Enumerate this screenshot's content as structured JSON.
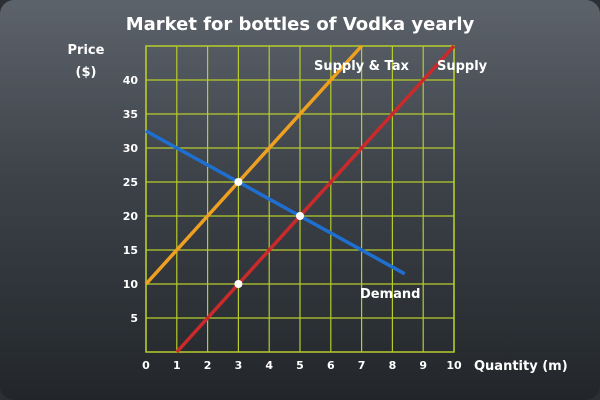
{
  "chart_data": {
    "type": "line",
    "title": "Market for bottles of Vodka yearly",
    "ylabel_line1": "Price",
    "ylabel_line2": "($)",
    "xlabel": "Quantity (m)",
    "xlim": [
      0,
      10
    ],
    "ylim": [
      0,
      45
    ],
    "x_ticks": [
      0,
      1,
      2,
      3,
      4,
      5,
      6,
      7,
      8,
      9,
      10
    ],
    "y_ticks": [
      5,
      10,
      15,
      20,
      25,
      30,
      35,
      40
    ],
    "grid": true,
    "series": [
      {
        "name": "Demand",
        "color": "#1f6fd0",
        "x": [
          0,
          8.4
        ],
        "y": [
          32.5,
          11.5
        ]
      },
      {
        "name": "Supply",
        "color": "#cc2a2a",
        "x": [
          1,
          10
        ],
        "y": [
          0,
          45
        ]
      },
      {
        "name": "Supply & Tax",
        "color": "#f0a020",
        "x": [
          0,
          7
        ],
        "y": [
          10,
          45
        ]
      }
    ],
    "points": [
      {
        "x": 3,
        "y": 25
      },
      {
        "x": 5,
        "y": 20
      },
      {
        "x": 3,
        "y": 10
      }
    ],
    "colors": {
      "grid": "#b6cc2a",
      "point": "#ffffff"
    }
  }
}
